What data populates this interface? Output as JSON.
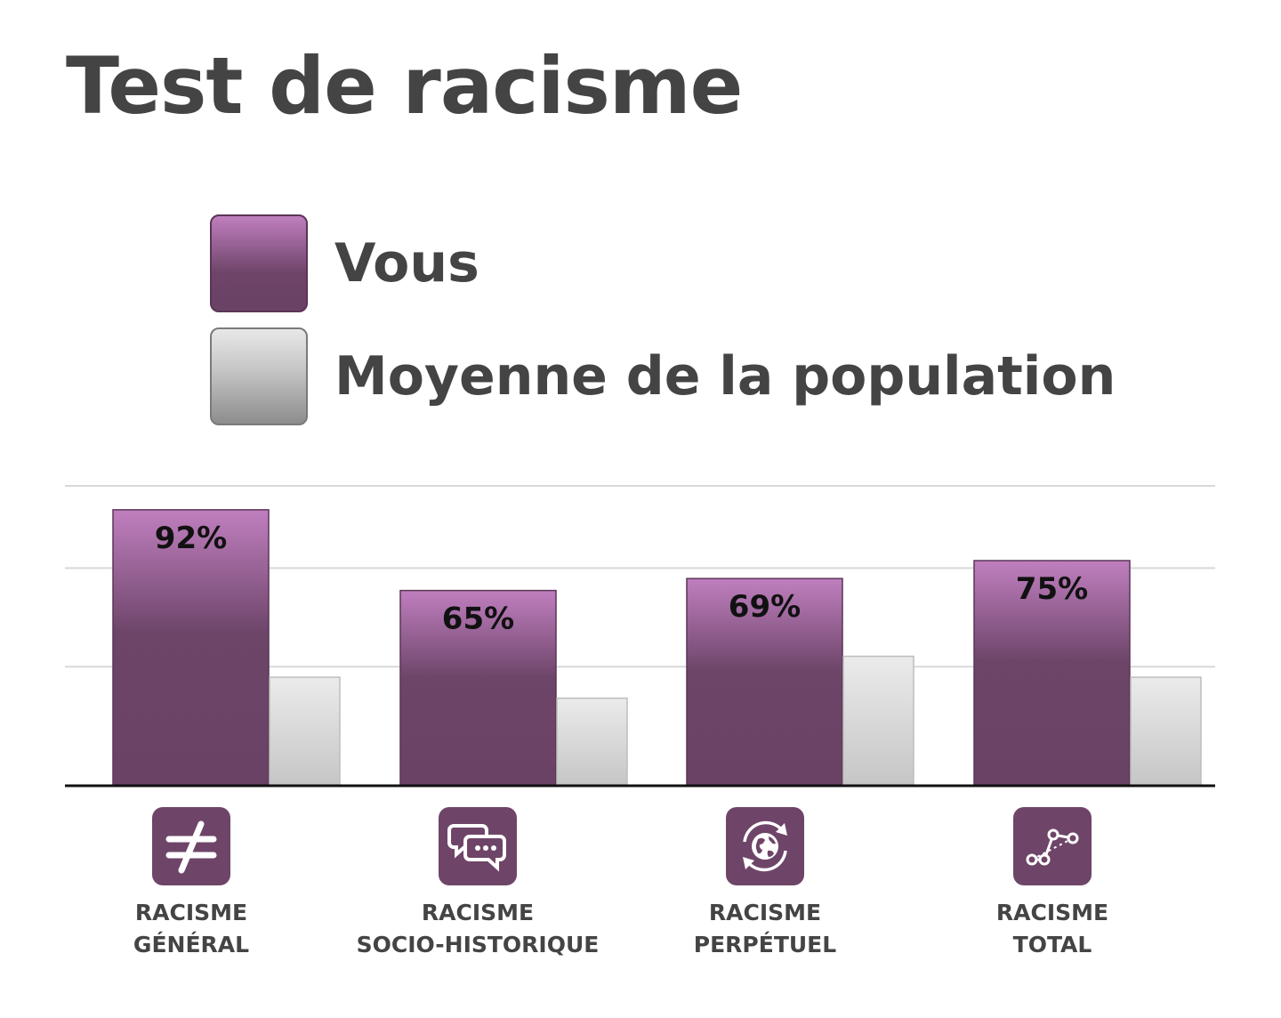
{
  "title": "Test de racisme",
  "legend": [
    {
      "label": "Vous",
      "color": "#6e4469"
    },
    {
      "label": "Moyenne de la population",
      "color": "#c4c4c4"
    }
  ],
  "chart_data": {
    "type": "bar",
    "title": "Test de racisme",
    "categories": [
      {
        "line1": "RACISME",
        "line2": "GÉNÉRAL",
        "icon": "not-equal-icon"
      },
      {
        "line1": "RACISME",
        "line2": "SOCIO-HISTORIQUE",
        "icon": "chat-bubbles-icon"
      },
      {
        "line1": "RACISME",
        "line2": "PERPÉTUEL",
        "icon": "globe-cycle-icon"
      },
      {
        "line1": "RACISME",
        "line2": "TOTAL",
        "icon": "connected-points-icon"
      }
    ],
    "series": [
      {
        "name": "Vous",
        "values": [
          92,
          65,
          69,
          75
        ],
        "labels": [
          "92%",
          "65%",
          "69%",
          "75%"
        ],
        "color": "#6e4469"
      },
      {
        "name": "Moyenne de la population",
        "values": [
          36,
          29,
          43,
          36
        ],
        "color": "#d0d0d0"
      }
    ],
    "ylim": [
      0,
      100
    ],
    "grid": true,
    "legend_position": "top"
  }
}
